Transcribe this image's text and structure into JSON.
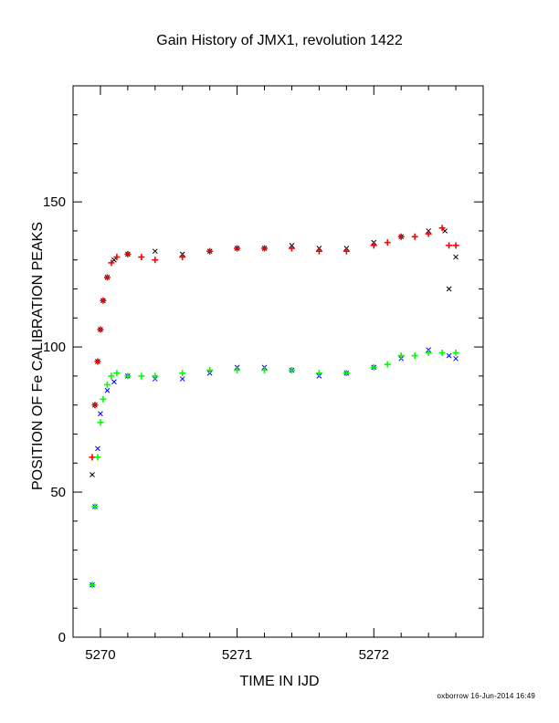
{
  "title": "Gain History of JMX1, revolution 1422",
  "footer": "oxborrow 16-Jun-2014 16:49",
  "chart_data": {
    "type": "scatter",
    "title": "Gain History of JMX1, revolution 1422",
    "xlabel": "TIME IN IJD",
    "ylabel": "POSITION OF Fe CALIBRATION PEAKS",
    "xlim": [
      5269.8,
      5272.8
    ],
    "ylim": [
      0,
      190
    ],
    "x_ticks": [
      "5270",
      "5271",
      "5272"
    ],
    "y_ticks": [
      "0",
      "50",
      "100",
      "150"
    ],
    "grid": false,
    "series": [
      {
        "marker": "x",
        "color": "#000000",
        "x": [
          5269.94,
          5269.96,
          5269.98,
          5270.0,
          5270.02,
          5270.05,
          5270.1,
          5270.2,
          5270.4,
          5270.6,
          5270.8,
          5271.0,
          5271.2,
          5271.4,
          5271.6,
          5271.8,
          5272.0,
          5272.2,
          5272.4,
          5272.52,
          5272.55,
          5272.6
        ],
        "y": [
          56,
          80,
          95,
          106,
          116,
          124,
          130,
          132,
          133,
          132,
          133,
          134,
          134,
          135,
          134,
          134,
          136,
          138,
          140,
          140,
          120,
          131
        ]
      },
      {
        "marker": "+",
        "color": "#ff0000",
        "x": [
          5269.94,
          5269.96,
          5269.98,
          5270.0,
          5270.02,
          5270.05,
          5270.08,
          5270.12,
          5270.2,
          5270.3,
          5270.4,
          5270.6,
          5270.8,
          5271.0,
          5271.2,
          5271.4,
          5271.6,
          5271.8,
          5272.0,
          5272.1,
          5272.2,
          5272.3,
          5272.4,
          5272.5,
          5272.55,
          5272.6
        ],
        "y": [
          62,
          80,
          95,
          106,
          116,
          124,
          129,
          131,
          132,
          131,
          130,
          131,
          133,
          134,
          134,
          134,
          133,
          133,
          135,
          136,
          138,
          138,
          139,
          141,
          135,
          135
        ]
      },
      {
        "marker": "x",
        "color": "#0000ff",
        "x": [
          5269.94,
          5269.96,
          5269.98,
          5270.0,
          5270.05,
          5270.1,
          5270.2,
          5270.4,
          5270.6,
          5270.8,
          5271.0,
          5271.2,
          5271.4,
          5271.6,
          5271.8,
          5272.0,
          5272.2,
          5272.4,
          5272.55,
          5272.6
        ],
        "y": [
          18,
          45,
          65,
          77,
          85,
          88,
          90,
          89,
          89,
          91,
          93,
          93,
          92,
          90,
          91,
          93,
          96,
          99,
          97,
          96
        ]
      },
      {
        "marker": "+",
        "color": "#00ff00",
        "x": [
          5269.94,
          5269.96,
          5269.98,
          5270.0,
          5270.02,
          5270.05,
          5270.08,
          5270.12,
          5270.2,
          5270.3,
          5270.4,
          5270.6,
          5270.8,
          5271.0,
          5271.2,
          5271.4,
          5271.6,
          5271.8,
          5272.0,
          5272.1,
          5272.2,
          5272.3,
          5272.4,
          5272.5,
          5272.6
        ],
        "y": [
          18,
          45,
          62,
          74,
          82,
          87,
          90,
          91,
          90,
          90,
          90,
          91,
          92,
          92,
          92,
          92,
          91,
          91,
          93,
          94,
          97,
          97,
          98,
          98,
          98
        ]
      }
    ]
  }
}
